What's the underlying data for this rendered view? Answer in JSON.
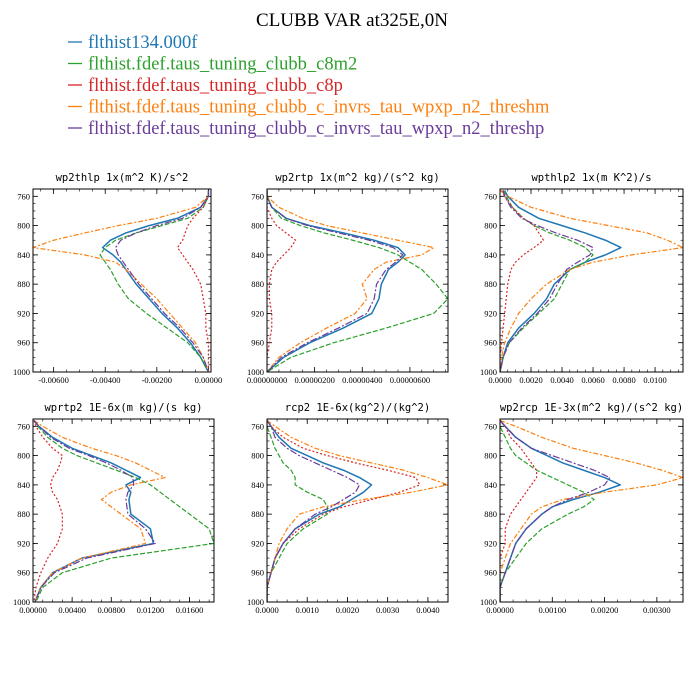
{
  "title": "CLUBB VAR at325E,0N",
  "legend": [
    {
      "label": "flthist134.000f",
      "color": "#1f77b4"
    },
    {
      "label": "flthist.fdef.taus_tuning_clubb_c8m2",
      "color": "#2ca02c"
    },
    {
      "label": "flthist.fdef.taus_tuning_clubb_c8p",
      "color": "#d62728"
    },
    {
      "label": "flthist.fdef.taus_tuning_clubb_c_invrs_tau_wpxp_n2_threshm",
      "color": "#ff7f0e"
    },
    {
      "label": "flthist.fdef.taus_tuning_clubb_c_invrs_tau_wpxp_n2_threshp",
      "color": "#6a3d9a"
    }
  ],
  "chart_data": [
    {
      "type": "line",
      "title": "wp2thlp  1x(m^2 K)/s^2",
      "xlim": [
        -0.0068,
        0.0001
      ],
      "ylim": [
        1000,
        750
      ],
      "xticks": [
        -0.006,
        -0.004,
        -0.002,
        0.0
      ],
      "xtick_labels": [
        "-0.00600",
        "-0.00400",
        "-0.00200",
        "0.00000"
      ],
      "yticks": [
        760,
        800,
        840,
        880,
        920,
        960,
        1000
      ],
      "y": [
        752,
        760,
        775,
        790,
        800,
        810,
        820,
        830,
        840,
        850,
        860,
        880,
        900,
        920,
        940,
        960,
        980,
        1000
      ],
      "series": [
        {
          "values": [
            0.0,
            0.0,
            -0.0003,
            -0.0012,
            -0.0023,
            -0.0032,
            -0.0038,
            -0.0041,
            -0.0037,
            -0.0034,
            -0.0032,
            -0.0028,
            -0.0023,
            -0.0018,
            -0.0012,
            -0.0007,
            -0.0003,
            0.0
          ]
        },
        {
          "values": [
            0.0,
            0.0,
            -0.0002,
            -0.0008,
            -0.0018,
            -0.0028,
            -0.0036,
            -0.004,
            -0.0042,
            -0.004,
            -0.0038,
            -0.0035,
            -0.0031,
            -0.0024,
            -0.0016,
            -0.0008,
            -0.0003,
            0.0
          ]
        },
        {
          "values": [
            0.0,
            0.0,
            -0.0002,
            -0.0006,
            -0.0008,
            -0.0009,
            -0.001,
            -0.0012,
            -0.001,
            -0.0008,
            -0.0006,
            -0.0003,
            -0.0002,
            -0.0001,
            -0.0001,
            0.0,
            0.0,
            0.0
          ]
        },
        {
          "values": [
            0.0,
            0.0,
            -0.0005,
            -0.002,
            -0.0035,
            -0.0048,
            -0.006,
            -0.0068,
            -0.0048,
            -0.0036,
            -0.0032,
            -0.0026,
            -0.002,
            -0.0015,
            -0.001,
            -0.0005,
            -0.0002,
            0.0
          ]
        },
        {
          "values": [
            0.0,
            0.0,
            -0.0003,
            -0.001,
            -0.002,
            -0.0028,
            -0.0034,
            -0.0036,
            -0.0035,
            -0.0033,
            -0.0031,
            -0.0027,
            -0.0022,
            -0.0017,
            -0.0011,
            -0.0006,
            -0.0002,
            0.0
          ]
        }
      ]
    },
    {
      "type": "line",
      "title": "wp2rtp  1x(m^2 kg)/(s^2 kg)",
      "xlim": [
        0.0,
        7.6e-06
      ],
      "ylim": [
        1000,
        750
      ],
      "xticks": [
        0.0,
        2e-06,
        4e-06,
        6e-06
      ],
      "xtick_labels": [
        "0.00000000",
        "0.00000200",
        "0.00000400",
        "0.00000600"
      ],
      "yticks": [
        760,
        800,
        840,
        880,
        920,
        960,
        1000
      ],
      "y": [
        752,
        760,
        775,
        790,
        800,
        810,
        820,
        830,
        840,
        850,
        860,
        880,
        900,
        920,
        940,
        960,
        980,
        1000
      ],
      "series": [
        {
          "values": [
            0.0,
            0.0,
            2e-07,
            8e-07,
            1.8e-06,
            3.2e-06,
            4.5e-06,
            5.5e-06,
            5.8e-06,
            5.5e-06,
            5.1e-06,
            4.8e-06,
            4.7e-06,
            4.4e-06,
            3.2e-06,
            1.8e-06,
            7e-07,
            0.0
          ]
        },
        {
          "values": [
            0.0,
            0.0,
            2e-07,
            6e-07,
            1.4e-06,
            2.4e-06,
            3.6e-06,
            4.7e-06,
            5.5e-06,
            6e-06,
            6.5e-06,
            7.1e-06,
            7.6e-06,
            7e-06,
            5e-06,
            2.8e-06,
            1e-06,
            0.0
          ]
        },
        {
          "values": [
            0.0,
            0.0,
            0.0,
            2e-07,
            4e-07,
            8e-07,
            1.2e-06,
            1e-06,
            7e-07,
            4e-07,
            2e-07,
            1e-07,
            1e-07,
            2e-07,
            2e-07,
            1e-07,
            0.0,
            0.0
          ]
        },
        {
          "values": [
            0.0,
            0.0,
            5e-07,
            1.5e-06,
            2.5e-06,
            4e-06,
            5.5e-06,
            7e-06,
            6.5e-06,
            5e-06,
            4.5e-06,
            4e-06,
            4.2e-06,
            3.7e-06,
            2.5e-06,
            1.4e-06,
            5e-07,
            0.0
          ]
        },
        {
          "values": [
            0.0,
            0.0,
            2e-07,
            8e-07,
            1.7e-06,
            3e-06,
            4.3e-06,
            5.3e-06,
            5.7e-06,
            5.4e-06,
            5e-06,
            4.6e-06,
            4.5e-06,
            4.2e-06,
            3e-06,
            1.7e-06,
            6e-07,
            0.0
          ]
        }
      ]
    },
    {
      "type": "line",
      "title": "wpthlp2  1x(m K^2)/s",
      "xlim": [
        0.0,
        0.0118
      ],
      "ylim": [
        1000,
        750
      ],
      "xticks": [
        0.0,
        0.002,
        0.004,
        0.006,
        0.008,
        0.01
      ],
      "xtick_labels": [
        "0.0000",
        "0.0020",
        "0.0040",
        "0.0060",
        "0.0080",
        "0.0100"
      ],
      "yticks": [
        760,
        800,
        840,
        880,
        920,
        960,
        1000
      ],
      "y": [
        752,
        760,
        775,
        790,
        800,
        810,
        820,
        830,
        840,
        850,
        860,
        880,
        900,
        920,
        940,
        960,
        980,
        1000
      ],
      "series": [
        {
          "values": [
            0.0003,
            0.0005,
            0.0012,
            0.0025,
            0.004,
            0.0055,
            0.0068,
            0.0078,
            0.0068,
            0.0055,
            0.0045,
            0.0035,
            0.003,
            0.0022,
            0.0012,
            0.0005,
            0.0002,
            0.0
          ]
        },
        {
          "values": [
            0.0002,
            0.0004,
            0.0008,
            0.0015,
            0.0022,
            0.0032,
            0.0045,
            0.0055,
            0.006,
            0.0055,
            0.0045,
            0.004,
            0.0035,
            0.0025,
            0.0015,
            0.0006,
            0.0002,
            0.0
          ]
        },
        {
          "values": [
            0.0001,
            0.0003,
            0.0008,
            0.0015,
            0.0022,
            0.0025,
            0.0028,
            0.0022,
            0.0015,
            0.001,
            0.0007,
            0.0005,
            0.0004,
            0.0003,
            0.0002,
            0.0001,
            0.0,
            0.0
          ]
        },
        {
          "values": [
            0.0,
            0.0005,
            0.002,
            0.0045,
            0.007,
            0.0095,
            0.0108,
            0.0118,
            0.0085,
            0.006,
            0.0045,
            0.003,
            0.002,
            0.0012,
            0.0007,
            0.0003,
            0.0001,
            0.0
          ]
        },
        {
          "values": [
            0.0002,
            0.0003,
            0.0007,
            0.0014,
            0.0024,
            0.0036,
            0.005,
            0.006,
            0.0058,
            0.005,
            0.0043,
            0.0037,
            0.0032,
            0.0024,
            0.0014,
            0.0006,
            0.0002,
            0.0
          ]
        }
      ]
    },
    {
      "type": "line",
      "title": "wprtp2  1E-6x(m kg)/(s kg)",
      "xlim": [
        0.0,
        0.0185
      ],
      "ylim": [
        1000,
        750
      ],
      "xticks": [
        0.0,
        0.004,
        0.008,
        0.012,
        0.016
      ],
      "xtick_labels": [
        "0.00000",
        "0.00400",
        "0.00800",
        "0.01200",
        "0.01600"
      ],
      "yticks": [
        760,
        800,
        840,
        880,
        920,
        960,
        1000
      ],
      "y": [
        752,
        760,
        775,
        790,
        800,
        810,
        820,
        830,
        840,
        850,
        860,
        880,
        900,
        920,
        940,
        960,
        980,
        1000
      ],
      "series": [
        {
          "values": [
            0.0001,
            0.0006,
            0.002,
            0.004,
            0.006,
            0.008,
            0.0095,
            0.011,
            0.0095,
            0.01,
            0.0098,
            0.01,
            0.012,
            0.0123,
            0.005,
            0.002,
            0.0008,
            0.0002
          ]
        },
        {
          "values": [
            0.0001,
            0.0005,
            0.0015,
            0.003,
            0.0045,
            0.0065,
            0.0085,
            0.0105,
            0.012,
            0.013,
            0.014,
            0.016,
            0.018,
            0.0185,
            0.008,
            0.003,
            0.001,
            0.0003
          ]
        },
        {
          "values": [
            0.0001,
            0.0003,
            0.001,
            0.002,
            0.003,
            0.0028,
            0.0025,
            0.002,
            0.0018,
            0.002,
            0.0025,
            0.003,
            0.003,
            0.0025,
            0.0015,
            0.0008,
            0.0003,
            0.0001
          ]
        },
        {
          "values": [
            0.0001,
            0.001,
            0.003,
            0.006,
            0.0085,
            0.0105,
            0.012,
            0.0135,
            0.01,
            0.008,
            0.007,
            0.009,
            0.011,
            0.0115,
            0.005,
            0.002,
            0.0008,
            0.0002
          ]
        },
        {
          "values": [
            0.0001,
            0.0006,
            0.0018,
            0.0037,
            0.0057,
            0.0075,
            0.009,
            0.0102,
            0.0103,
            0.0097,
            0.0095,
            0.0097,
            0.0115,
            0.0125,
            0.0055,
            0.0022,
            0.0008,
            0.0002
          ]
        }
      ]
    },
    {
      "type": "line",
      "title": "rcp2  1E-6x(kg^2)/(kg^2)",
      "xlim": [
        0.0,
        0.0045
      ],
      "ylim": [
        1000,
        750
      ],
      "xticks": [
        0.0,
        0.001,
        0.002,
        0.003,
        0.004
      ],
      "xtick_labels": [
        "0.0000",
        "0.0010",
        "0.0020",
        "0.0030",
        "0.0040"
      ],
      "yticks": [
        760,
        800,
        840,
        880,
        920,
        960,
        1000
      ],
      "y": [
        752,
        760,
        775,
        790,
        800,
        810,
        820,
        830,
        840,
        850,
        860,
        870,
        880,
        900,
        920,
        940,
        960,
        980,
        1000
      ],
      "series": [
        {
          "values": [
            0.0,
            0.0001,
            0.0003,
            0.0006,
            0.001,
            0.0014,
            0.0019,
            0.0023,
            0.0026,
            0.0024,
            0.0021,
            0.0018,
            0.0013,
            0.0007,
            0.0004,
            0.0002,
            0.0001,
            0.0,
            0.0
          ]
        },
        {
          "values": [
            0.0,
            0.0,
            0.0001,
            0.0002,
            0.0003,
            0.0004,
            0.0006,
            0.0007,
            0.0007,
            0.001,
            0.0014,
            0.0015,
            0.0015,
            0.0009,
            0.0005,
            0.0003,
            0.0001,
            0.0,
            0.0
          ]
        },
        {
          "values": [
            0.0,
            0.0001,
            0.0004,
            0.0009,
            0.0015,
            0.0022,
            0.003,
            0.0037,
            0.0038,
            0.0033,
            0.0026,
            0.0019,
            0.0014,
            0.0008,
            0.0004,
            0.0002,
            0.0001,
            0.0,
            0.0
          ]
        },
        {
          "values": [
            0.0,
            0.0002,
            0.0006,
            0.0012,
            0.0018,
            0.0026,
            0.0034,
            0.004,
            0.0045,
            0.0036,
            0.0024,
            0.0014,
            0.0008,
            0.0005,
            0.0003,
            0.0002,
            0.0001,
            0.0,
            0.0
          ]
        },
        {
          "values": [
            0.0,
            0.0001,
            0.0002,
            0.0005,
            0.0008,
            0.0012,
            0.0016,
            0.002,
            0.0023,
            0.0022,
            0.0019,
            0.0016,
            0.0012,
            0.0007,
            0.0004,
            0.0002,
            0.0001,
            0.0,
            0.0
          ]
        }
      ]
    },
    {
      "type": "line",
      "title": "wp2rcp  1E-3x(m^2 kg)/(s^2 kg)",
      "xlim": [
        0.0,
        0.0035
      ],
      "ylim": [
        1000,
        750
      ],
      "xticks": [
        0.0,
        0.001,
        0.002,
        0.003
      ],
      "xtick_labels": [
        "0.00000",
        "0.00100",
        "0.00200",
        "0.00300"
      ],
      "yticks": [
        760,
        800,
        840,
        880,
        920,
        960,
        1000
      ],
      "y": [
        752,
        760,
        775,
        790,
        800,
        810,
        820,
        830,
        840,
        850,
        860,
        870,
        880,
        900,
        920,
        940,
        960,
        980,
        1000
      ],
      "series": [
        {
          "values": [
            0.0,
            0.0001,
            0.0003,
            0.0006,
            0.0009,
            0.0012,
            0.0016,
            0.002,
            0.0023,
            0.0019,
            0.0014,
            0.001,
            0.0008,
            0.0005,
            0.0003,
            0.0002,
            0.0001,
            0.0,
            0.0
          ]
        },
        {
          "values": [
            0.0,
            0.0,
            0.0001,
            0.0002,
            0.0003,
            0.0005,
            0.0007,
            0.001,
            0.0013,
            0.0016,
            0.0018,
            0.0016,
            0.0013,
            0.0008,
            0.0005,
            0.0003,
            0.0001,
            0.0,
            0.0
          ]
        },
        {
          "values": [
            0.0,
            0.0001,
            0.0002,
            0.0004,
            0.0005,
            0.0006,
            0.0007,
            0.0007,
            0.0006,
            0.0005,
            0.0004,
            0.0003,
            0.0002,
            0.0001,
            0.0001,
            0.0,
            0.0,
            0.0,
            0.0
          ]
        },
        {
          "values": [
            0.0,
            0.0003,
            0.0008,
            0.0014,
            0.002,
            0.0026,
            0.0031,
            0.0035,
            0.003,
            0.002,
            0.0012,
            0.0008,
            0.0006,
            0.0004,
            0.0002,
            0.0001,
            0.0,
            0.0,
            0.0
          ]
        },
        {
          "values": [
            0.0,
            0.0001,
            0.0003,
            0.0006,
            0.001,
            0.0014,
            0.0018,
            0.0021,
            0.002,
            0.0017,
            0.0013,
            0.001,
            0.0008,
            0.0005,
            0.0003,
            0.0002,
            0.0001,
            0.0,
            0.0
          ]
        }
      ]
    }
  ]
}
